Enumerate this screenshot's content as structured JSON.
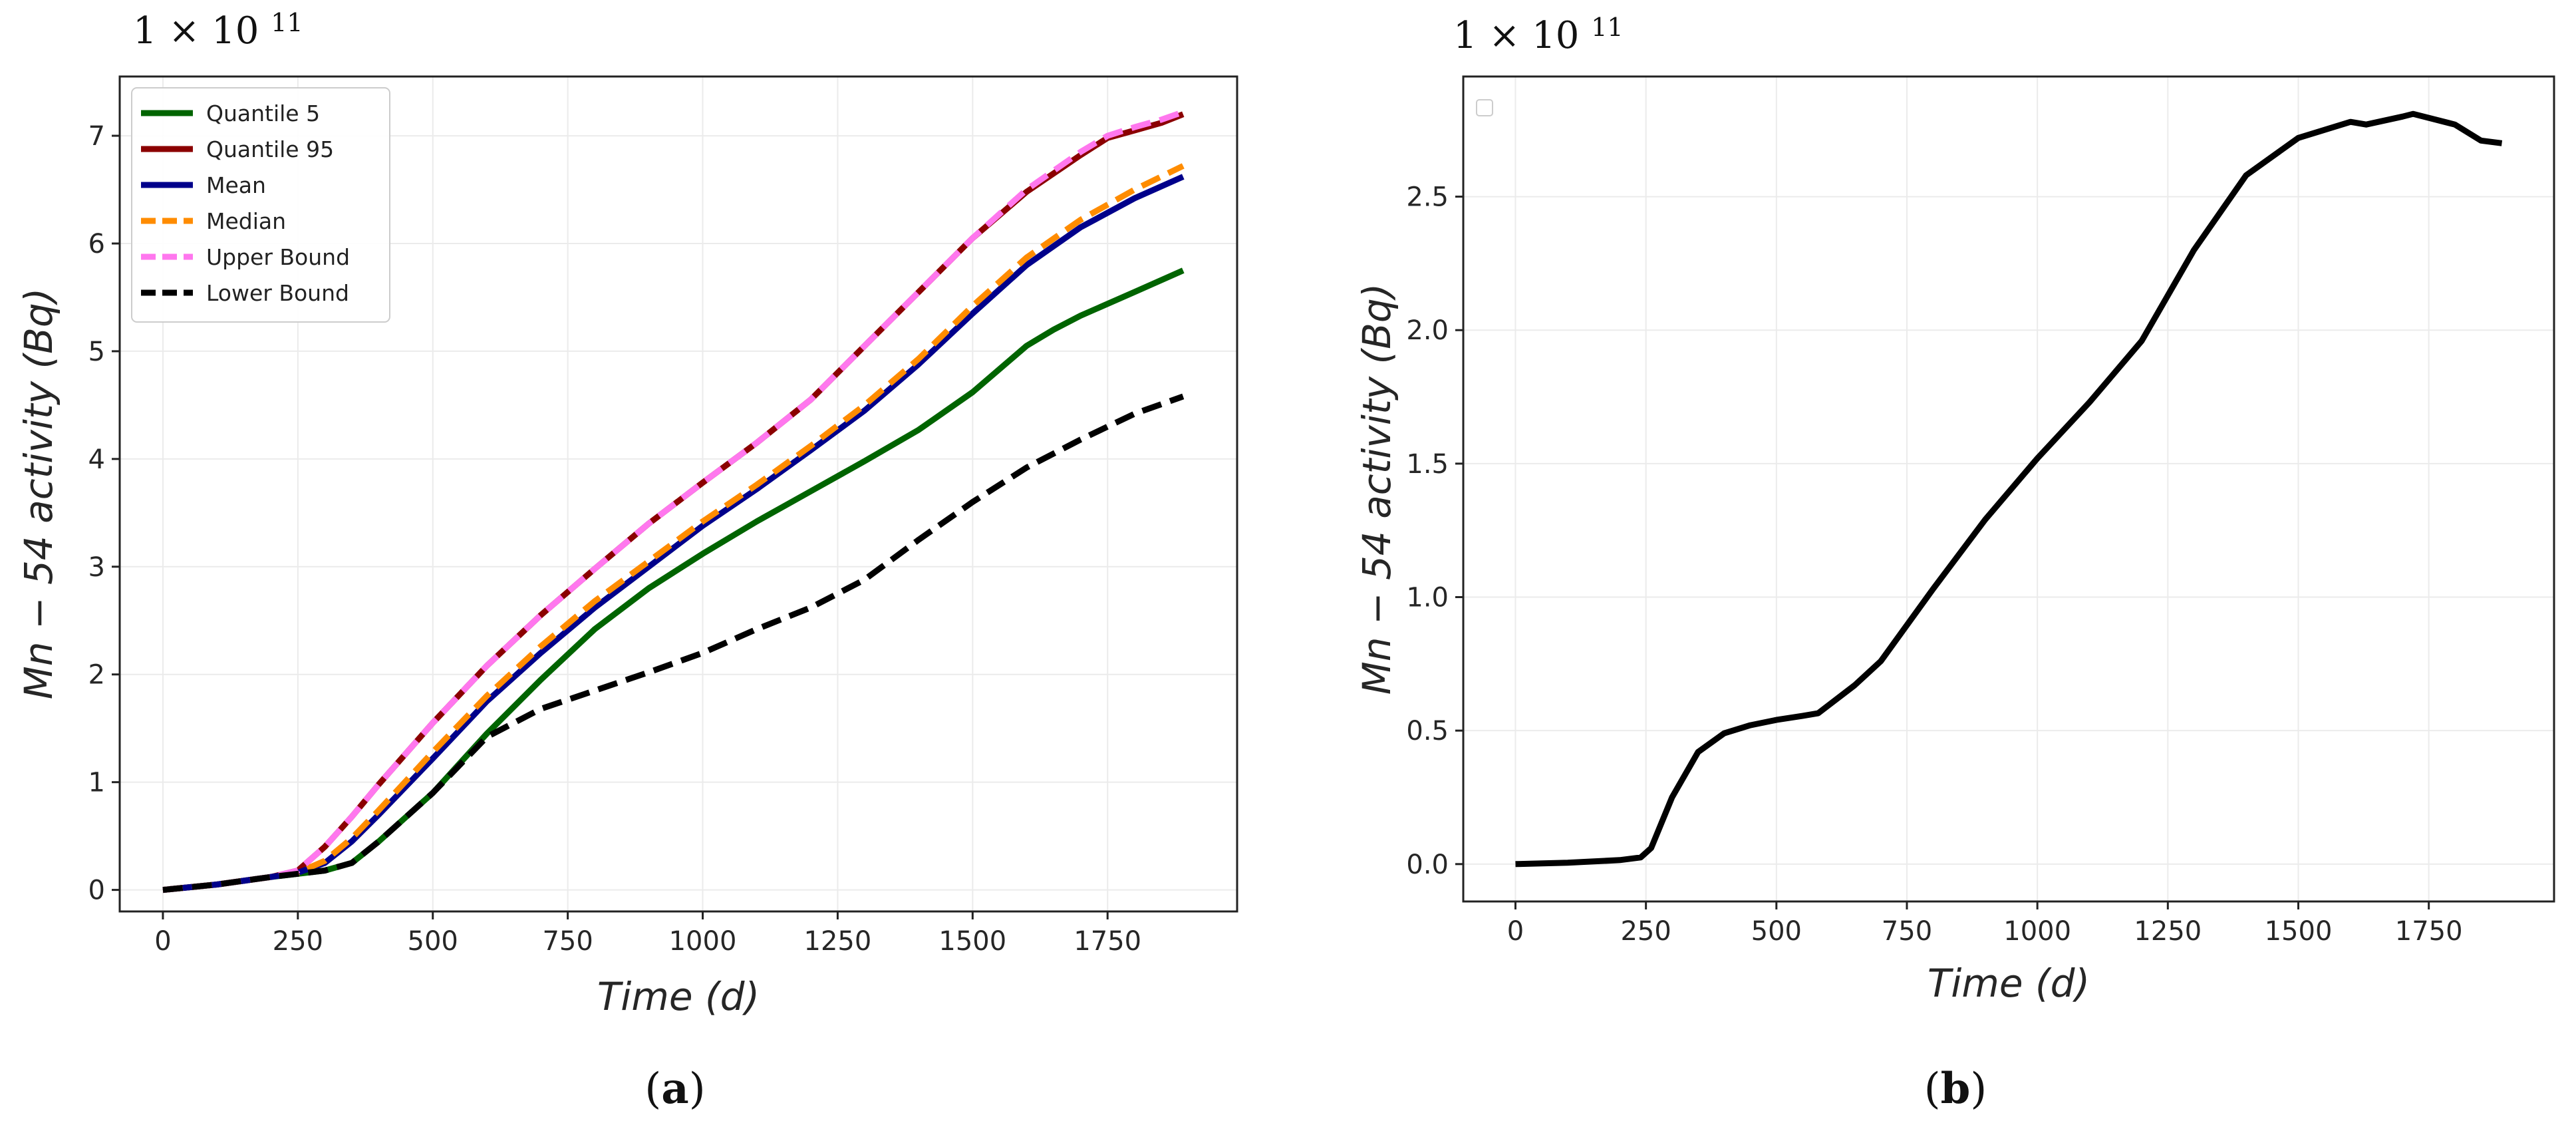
{
  "chart_data": [
    {
      "type": "line",
      "panel_caption": {
        "open": "(",
        "letter": "a",
        "close": ")"
      },
      "multiplier": {
        "base": "1 × 10",
        "exponent": "11"
      },
      "xlabel": "Time (d)",
      "ylabel": "Mn − 54 activity (Bq)",
      "xlim": [
        -80,
        1990
      ],
      "ylim": [
        -0.2,
        7.55
      ],
      "xticks": [
        0,
        250,
        500,
        750,
        1000,
        1250,
        1500,
        1750
      ],
      "xtick_labels": [
        "0",
        "250",
        "500",
        "750",
        "1000",
        "1250",
        "1500",
        "1750"
      ],
      "yticks": [
        0,
        1,
        2,
        3,
        4,
        5,
        6,
        7
      ],
      "ytick_labels": [
        "0",
        "1",
        "2",
        "3",
        "4",
        "5",
        "6",
        "7"
      ],
      "grid": true,
      "legend_position": "upper-left",
      "series": [
        {
          "name": "Quantile 5",
          "color": "#006400",
          "style": "solid",
          "x": [
            0,
            100,
            200,
            300,
            350,
            400,
            500,
            600,
            700,
            800,
            900,
            1000,
            1100,
            1200,
            1300,
            1400,
            1500,
            1600,
            1650,
            1700,
            1800,
            1890
          ],
          "y": [
            0,
            0.05,
            0.12,
            0.18,
            0.25,
            0.45,
            0.9,
            1.45,
            1.95,
            2.42,
            2.8,
            3.12,
            3.42,
            3.7,
            3.98,
            4.27,
            4.62,
            5.05,
            5.2,
            5.33,
            5.55,
            5.75
          ]
        },
        {
          "name": "Quantile 95",
          "color": "#8B0000",
          "style": "solid",
          "x": [
            0,
            100,
            200,
            250,
            300,
            350,
            400,
            500,
            600,
            700,
            800,
            900,
            1000,
            1100,
            1200,
            1300,
            1400,
            1500,
            1600,
            1700,
            1750,
            1800,
            1850,
            1890
          ],
          "y": [
            0,
            0.05,
            0.12,
            0.18,
            0.4,
            0.68,
            0.98,
            1.55,
            2.08,
            2.55,
            2.98,
            3.4,
            3.78,
            4.15,
            4.55,
            5.05,
            5.55,
            6.05,
            6.48,
            6.82,
            6.98,
            7.05,
            7.12,
            7.2
          ]
        },
        {
          "name": "Mean",
          "color": "#00008B",
          "style": "solid",
          "x": [
            0,
            100,
            200,
            250,
            300,
            350,
            400,
            500,
            600,
            700,
            800,
            900,
            1000,
            1100,
            1200,
            1300,
            1400,
            1500,
            1600,
            1700,
            1800,
            1890
          ],
          "y": [
            0,
            0.05,
            0.12,
            0.16,
            0.25,
            0.45,
            0.7,
            1.22,
            1.75,
            2.2,
            2.62,
            3.0,
            3.38,
            3.72,
            4.08,
            4.45,
            4.88,
            5.35,
            5.8,
            6.15,
            6.42,
            6.62
          ]
        },
        {
          "name": "Median",
          "color": "#FF8C00",
          "style": "dashed",
          "x": [
            0,
            100,
            200,
            250,
            300,
            350,
            400,
            500,
            600,
            700,
            800,
            900,
            1000,
            1100,
            1200,
            1300,
            1400,
            1500,
            1600,
            1700,
            1800,
            1890
          ],
          "y": [
            0,
            0.05,
            0.12,
            0.16,
            0.27,
            0.48,
            0.74,
            1.28,
            1.8,
            2.26,
            2.68,
            3.05,
            3.42,
            3.76,
            4.12,
            4.5,
            4.93,
            5.42,
            5.87,
            6.22,
            6.5,
            6.72
          ]
        },
        {
          "name": "Upper Bound",
          "color": "#FF77EE",
          "style": "dashed",
          "x": [
            0,
            100,
            200,
            250,
            300,
            350,
            400,
            500,
            600,
            700,
            800,
            900,
            1000,
            1100,
            1200,
            1300,
            1400,
            1500,
            1600,
            1700,
            1750,
            1800,
            1850,
            1890
          ],
          "y": [
            0,
            0.05,
            0.12,
            0.18,
            0.4,
            0.68,
            0.98,
            1.55,
            2.08,
            2.55,
            2.98,
            3.4,
            3.78,
            4.15,
            4.55,
            5.05,
            5.55,
            6.05,
            6.5,
            6.85,
            7.0,
            7.08,
            7.15,
            7.22
          ]
        },
        {
          "name": "Lower Bound",
          "color": "#000000",
          "style": "dashed",
          "x": [
            0,
            100,
            200,
            300,
            350,
            400,
            500,
            600,
            650,
            700,
            800,
            900,
            1000,
            1100,
            1200,
            1300,
            1400,
            1500,
            1600,
            1700,
            1800,
            1890
          ],
          "y": [
            0,
            0.05,
            0.12,
            0.18,
            0.25,
            0.45,
            0.9,
            1.42,
            1.55,
            1.68,
            1.85,
            2.02,
            2.2,
            2.42,
            2.62,
            2.88,
            3.25,
            3.6,
            3.92,
            4.18,
            4.42,
            4.58
          ]
        }
      ]
    },
    {
      "type": "line",
      "panel_caption": {
        "open": "(",
        "letter": "b",
        "close": ")"
      },
      "multiplier": {
        "base": "1 × 10",
        "exponent": "11"
      },
      "xlabel": "Time (d)",
      "ylabel": "Mn − 54 activity (Bq)",
      "xlim": [
        -100,
        1990
      ],
      "ylim": [
        -0.14,
        2.95
      ],
      "xticks": [
        0,
        250,
        500,
        750,
        1000,
        1250,
        1500,
        1750
      ],
      "xtick_labels": [
        "0",
        "250",
        "500",
        "750",
        "1000",
        "1250",
        "1500",
        "1750"
      ],
      "yticks": [
        0,
        0.5,
        1,
        1.5,
        2,
        2.5
      ],
      "ytick_labels": [
        "0.0",
        "0.5",
        "1.0",
        "1.5",
        "2.0",
        "2.5"
      ],
      "grid": true,
      "legend_position": "upper-left",
      "series": [
        {
          "name": "",
          "color": "#000000",
          "style": "solid",
          "x": [
            0,
            100,
            200,
            240,
            260,
            300,
            350,
            400,
            450,
            500,
            550,
            580,
            650,
            700,
            800,
            900,
            1000,
            1100,
            1200,
            1300,
            1400,
            1500,
            1600,
            1630,
            1700,
            1720,
            1800,
            1850,
            1890
          ],
          "y": [
            0,
            0.005,
            0.015,
            0.025,
            0.06,
            0.25,
            0.42,
            0.49,
            0.52,
            0.54,
            0.555,
            0.565,
            0.67,
            0.76,
            1.03,
            1.29,
            1.52,
            1.73,
            1.96,
            2.3,
            2.58,
            2.72,
            2.78,
            2.77,
            2.8,
            2.81,
            2.77,
            2.71,
            2.7
          ]
        }
      ]
    }
  ]
}
